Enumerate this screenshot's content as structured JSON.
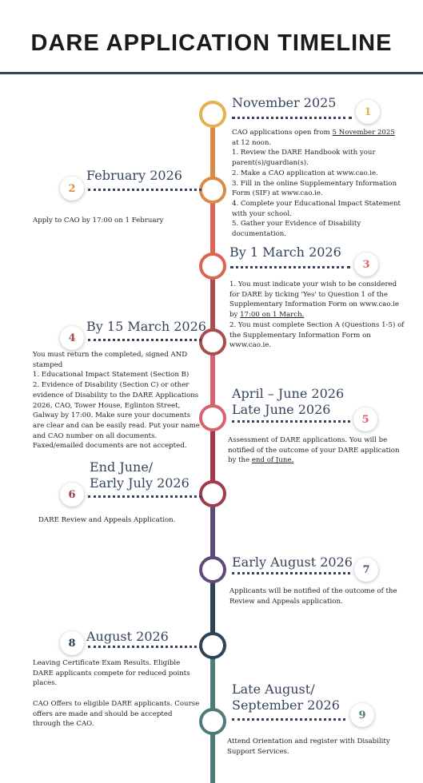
{
  "title": "DARE APPLICATION TIMELINE",
  "colors": {
    "header_rule": "#34445a",
    "dots": "#34445a",
    "date_text": "#34445a"
  },
  "steps": [
    {
      "number": "1",
      "color": "#e5b04e",
      "date": "November 2025",
      "lines": [
        {
          "pre": "CAO applications open from ",
          "u": "5 November 2025",
          "post": ""
        },
        {
          "pre": "at 12 noon.",
          "u": "",
          "post": ""
        },
        {
          "pre": "1. Review the DARE Handbook with your parent(s)/guardian(s).",
          "u": "",
          "post": ""
        },
        {
          "pre": "2. Make a CAO application at www.cao.ie.",
          "u": "",
          "post": ""
        },
        {
          "pre": "3. Fill in the online Supplementary Information Form (SIF) at www.cao.ie.",
          "u": "",
          "post": ""
        },
        {
          "pre": "4. Complete your Educational Impact Statement with your school.",
          "u": "",
          "post": ""
        },
        {
          "pre": "5. Gather your Evidence of Disability documentation.",
          "u": "",
          "post": ""
        }
      ]
    },
    {
      "number": "2",
      "color": "#dc8a45",
      "date": "February 2026",
      "lines": [
        {
          "pre": "Apply to CAO by 17:00 on 1 February",
          "u": "",
          "post": ""
        }
      ]
    },
    {
      "number": "3",
      "color": "#d96552",
      "date": "By 1 March 2026",
      "lines": [
        {
          "pre": "1. You must indicate your wish to be considered for DARE by ticking 'Yes' to Question 1 of the Supplementary Information Form on www.cao.ie by ",
          "u": "17:00 on 1 March.",
          "post": ""
        },
        {
          "pre": "2. You must complete Section A (Questions 1-5) of the Supplementary Information Form on www.cao.ie.",
          "u": "",
          "post": ""
        }
      ]
    },
    {
      "number": "4",
      "color": "#a64d4d",
      "date": "By 15 March 2026",
      "lines": [
        {
          "pre": "You must return the completed, signed AND stamped",
          "u": "",
          "post": ""
        },
        {
          "pre": "1. Educational Impact Statement (Section B)",
          "u": "",
          "post": ""
        },
        {
          "pre": "2. Evidence of Disability (Section C) or other evidence of Disability to the DARE Applications 2026, CAO, Tower House, Eglinton Street, Galway by 17:00. Make sure your documents are clear and can be easily read. Put your name and CAO number on all documents. Faxed/emailed documents are not accepted.",
          "u": "",
          "post": ""
        }
      ]
    },
    {
      "number": "5",
      "color": "#d9626f",
      "date_line1": "April – June 2026",
      "date": "Late June 2026",
      "lines": [
        {
          "pre": "Assessment of DARE applications. You will be notified of the outcome of your DARE application by the ",
          "u": "end of June.",
          "post": ""
        }
      ]
    },
    {
      "number": "6",
      "color": "#a13a4c",
      "date_line1": "End June/",
      "date": "Early July 2026",
      "lines": [
        {
          "pre": "DARE Review and Appeals Application.",
          "u": "",
          "post": ""
        }
      ]
    },
    {
      "number": "7",
      "color": "#5e4b78",
      "date": "Early August 2026",
      "lines": [
        {
          "pre": "Applicants will be notified of the outcome of the Review and Appeals application.",
          "u": "",
          "post": ""
        }
      ]
    },
    {
      "number": "8",
      "color": "#2f4356",
      "date": "August 2026",
      "lines": [
        {
          "pre": "Leaving Certificate Exam Results. Eligible DARE applicants compete for reduced points places.",
          "u": "",
          "post": ""
        },
        {
          "pre": "",
          "u": "",
          "post": ""
        },
        {
          "pre": "CAO Offers to eligible DARE applicants. Course offers are made and should be accepted through the CAO.",
          "u": "",
          "post": ""
        }
      ]
    },
    {
      "number": "9",
      "color": "#4f7b7a",
      "date_line1": "Late August/",
      "date": "September 2026",
      "lines": [
        {
          "pre": "Attend Orientation and register with Disability Support Services.",
          "u": "",
          "post": ""
        }
      ]
    }
  ]
}
